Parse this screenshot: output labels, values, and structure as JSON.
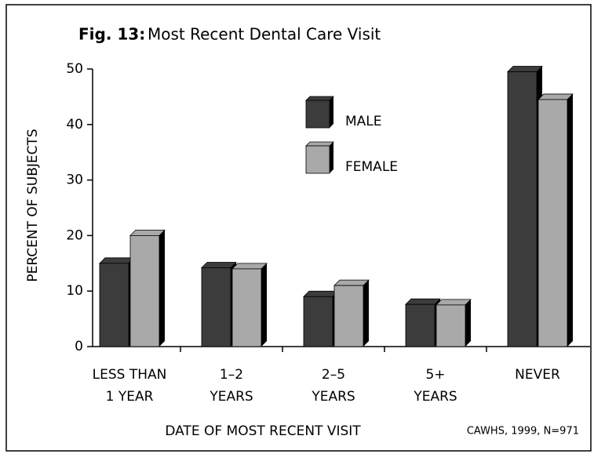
{
  "chart_data": {
    "type": "bar",
    "figure_label": "Fig. 13:",
    "title": "Most Recent Dental Care Visit",
    "categories": [
      [
        "LESS THAN",
        "1 YEAR"
      ],
      [
        "1–2",
        "YEARS"
      ],
      [
        "2–5",
        "YEARS"
      ],
      [
        "5+",
        "YEARS"
      ],
      [
        "NEVER"
      ]
    ],
    "series": [
      {
        "name": "MALE",
        "color": "#3c3c3c",
        "values": [
          15,
          14.2,
          9,
          7.6,
          49.5
        ]
      },
      {
        "name": "FEMALE",
        "color": "#a9a9a9",
        "values": [
          20,
          14,
          11,
          7.5,
          44.5
        ]
      }
    ],
    "ylim": [
      0,
      50
    ],
    "yticks": [
      0,
      10,
      20,
      30,
      40,
      50
    ],
    "xlabel": "DATE OF MOST RECENT VISIT",
    "ylabel": "PERCENT OF SUBJECTS",
    "source": "CAWHS, 1999, N=971",
    "grid": false
  }
}
